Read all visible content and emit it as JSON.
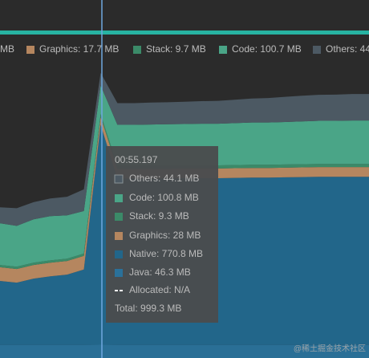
{
  "chart_data": {
    "type": "area",
    "stacked": true,
    "categories": [
      null,
      null,
      null,
      null,
      null,
      null,
      null,
      null,
      null,
      null,
      null,
      null,
      null,
      null,
      null,
      null,
      null,
      null,
      null,
      null,
      null,
      null,
      null
    ],
    "series": [
      {
        "color": "#2a6f96",
        "values": [
          46,
          46,
          46,
          46,
          46,
          46,
          46.3,
          46,
          46,
          46,
          46,
          46,
          46,
          46,
          46,
          46,
          46,
          46,
          46,
          46,
          46,
          46,
          46
        ]
      },
      {
        "color": "#22668a",
        "values": [
          224,
          218,
          232,
          240,
          246,
          264,
          770.8,
          583,
          583,
          583,
          583,
          584,
          584,
          584,
          585,
          586,
          586,
          587,
          588,
          589,
          589,
          589,
          589
        ]
      },
      {
        "color": "#b5865f",
        "values": [
          48,
          48,
          48,
          48,
          48,
          48,
          28,
          34,
          34,
          34,
          34,
          34,
          34,
          34,
          34,
          34,
          34,
          34,
          34,
          34,
          34,
          34,
          34
        ]
      },
      {
        "color": "#3b8a68",
        "values": [
          8,
          8,
          8,
          8,
          8,
          8,
          9.3,
          11,
          11,
          11,
          11,
          11,
          11,
          11,
          11,
          11,
          11,
          11,
          11,
          11,
          11,
          11,
          11
        ]
      },
      {
        "color": "#4aa587",
        "values": [
          146,
          143,
          152,
          155,
          152,
          149,
          100.8,
          143,
          143,
          144,
          145,
          145,
          146,
          146,
          147,
          148,
          148,
          149,
          150,
          151,
          151,
          152,
          152
        ]
      },
      {
        "color": "#4c5963",
        "values": [
          56,
          62,
          60,
          62,
          65,
          76,
          44.1,
          76,
          76,
          77,
          77,
          78,
          79,
          80,
          82,
          84,
          86,
          88,
          90,
          91,
          92,
          93,
          93
        ]
      }
    ],
    "ylim": [
      0,
      1125
    ]
  },
  "legend": [
    {
      "label": "MB"
    },
    {
      "label": "Graphics: 17.7 MB",
      "color": "#b5865f"
    },
    {
      "label": "Stack: 9.7 MB",
      "color": "#3b8a68"
    },
    {
      "label": "Code: 100.7 MB",
      "color": "#4aa587"
    },
    {
      "label": "Others: 44.",
      "color": "#4c5963"
    }
  ],
  "tooltip": {
    "time": "00:55.197",
    "rows": [
      {
        "label": "Others: 44.1 MB",
        "color": "#4c5963"
      },
      {
        "label": "Code: 100.8 MB",
        "color": "#4aa587"
      },
      {
        "label": "Stack: 9.3 MB",
        "color": "#3b8a68"
      },
      {
        "label": "Graphics: 28 MB",
        "color": "#b5865f"
      },
      {
        "label": "Native: 770.8 MB",
        "color": "#22668a"
      },
      {
        "label": "Java: 46.3 MB",
        "color": "#2a719a"
      }
    ],
    "allocated": "Allocated: N/A",
    "total": "Total: 999.3 MB"
  },
  "watermark": "@稀土掘金技术社区"
}
